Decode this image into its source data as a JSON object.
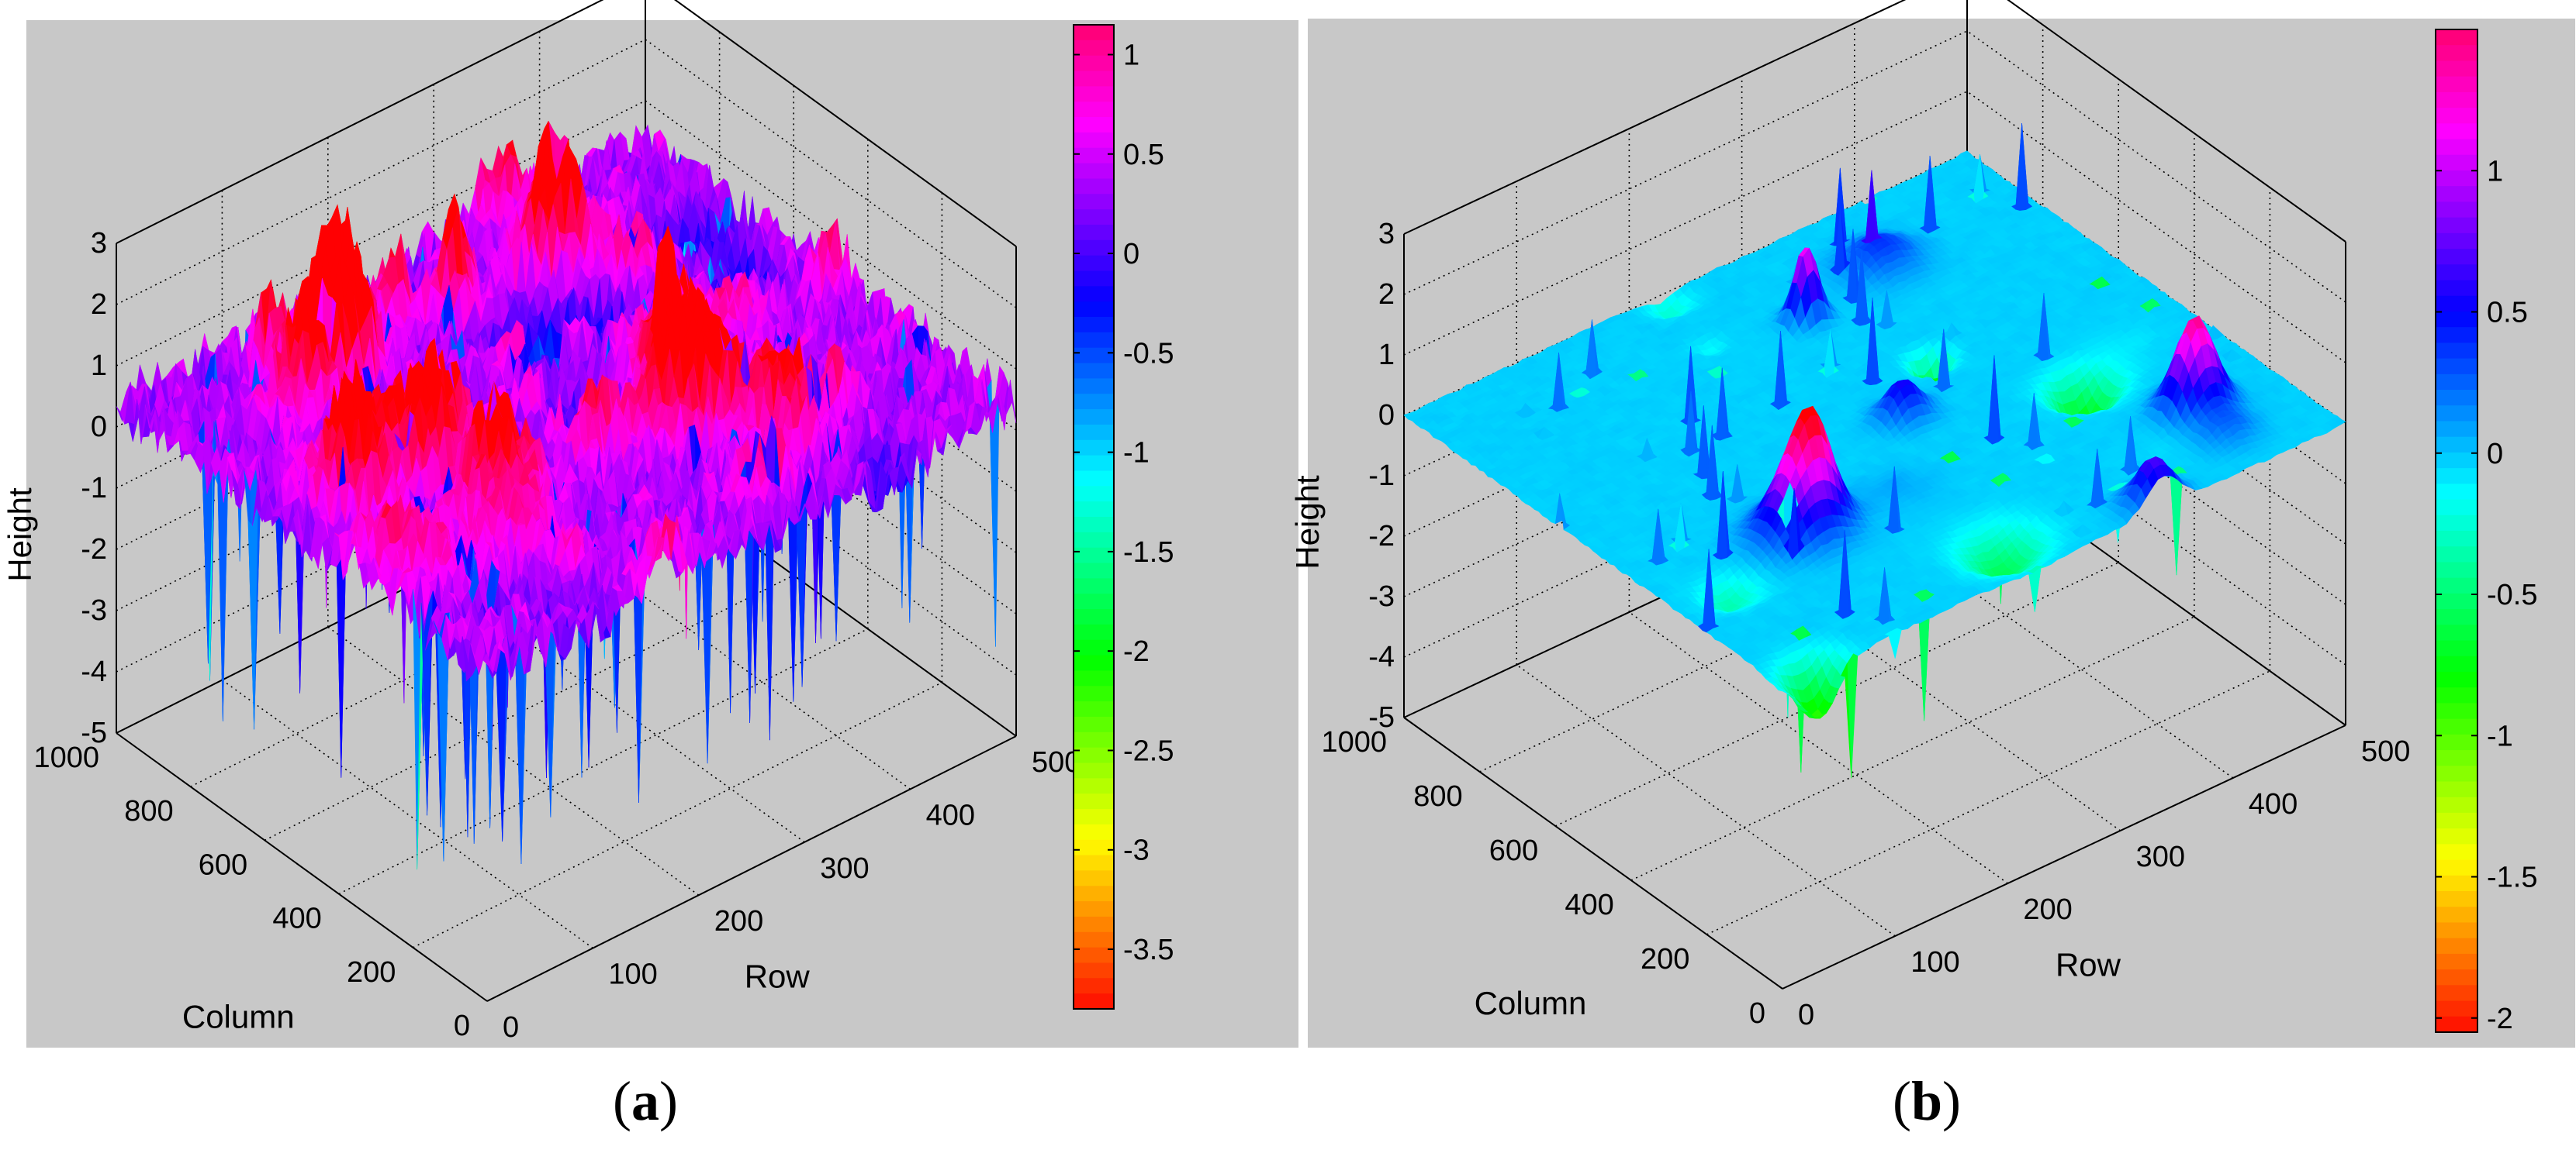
{
  "chart_data": [
    {
      "type": "surface",
      "panel_label": "a",
      "xlabel": "Row",
      "ylabel": "Column",
      "zlabel": "Height",
      "xlim": [
        0,
        500
      ],
      "ylim": [
        0,
        1000
      ],
      "zlim": [
        -5,
        3
      ],
      "xticks": [
        "0",
        "100",
        "200",
        "300",
        "400",
        "500"
      ],
      "yticks": [
        "0",
        "200",
        "400",
        "600",
        "800",
        "1000"
      ],
      "zticks": [
        "-5",
        "-4",
        "-3",
        "-2",
        "-1",
        "0",
        "1",
        "2",
        "3"
      ],
      "grid": true,
      "surface": {
        "base_height": 0.4,
        "roughness": 1.0,
        "peaks": 1.6,
        "pits": -3.8
      },
      "colorbar": {
        "range": [
          -3.8,
          1.15
        ],
        "ticks": [
          "1",
          "0.5",
          "0",
          "-0.5",
          "-1",
          "-1.5",
          "-2",
          "-2.5",
          "-3",
          "-3.5"
        ],
        "tick_values": [
          1,
          0.5,
          0,
          -0.5,
          -1,
          -1.5,
          -2,
          -2.5,
          -3,
          -3.5
        ],
        "colormap": "hsv"
      }
    },
    {
      "type": "surface",
      "panel_label": "b",
      "xlabel": "Row",
      "ylabel": "Column",
      "zlabel": "Height",
      "xlim": [
        0,
        500
      ],
      "ylim": [
        0,
        1000
      ],
      "zlim": [
        -5,
        3
      ],
      "xticks": [
        "0",
        "100",
        "200",
        "300",
        "400",
        "500"
      ],
      "yticks": [
        "0",
        "200",
        "400",
        "600",
        "800",
        "1000"
      ],
      "zticks": [
        "-5",
        "-4",
        "-3",
        "-2",
        "-1",
        "0",
        "1",
        "2",
        "3"
      ],
      "grid": true,
      "surface": {
        "base_height": 0.0,
        "roughness": 0.05,
        "peaks": 1.4,
        "pits": -2.0
      },
      "colorbar": {
        "range": [
          -2.05,
          1.5
        ],
        "ticks": [
          "1",
          "0.5",
          "0",
          "-0.5",
          "-1",
          "-1.5",
          "-2"
        ],
        "tick_values": [
          1,
          0.5,
          0,
          -0.5,
          -1,
          -1.5,
          -2
        ],
        "colormap": "hsv"
      }
    }
  ],
  "captions": {
    "a": "a",
    "b": "b"
  }
}
